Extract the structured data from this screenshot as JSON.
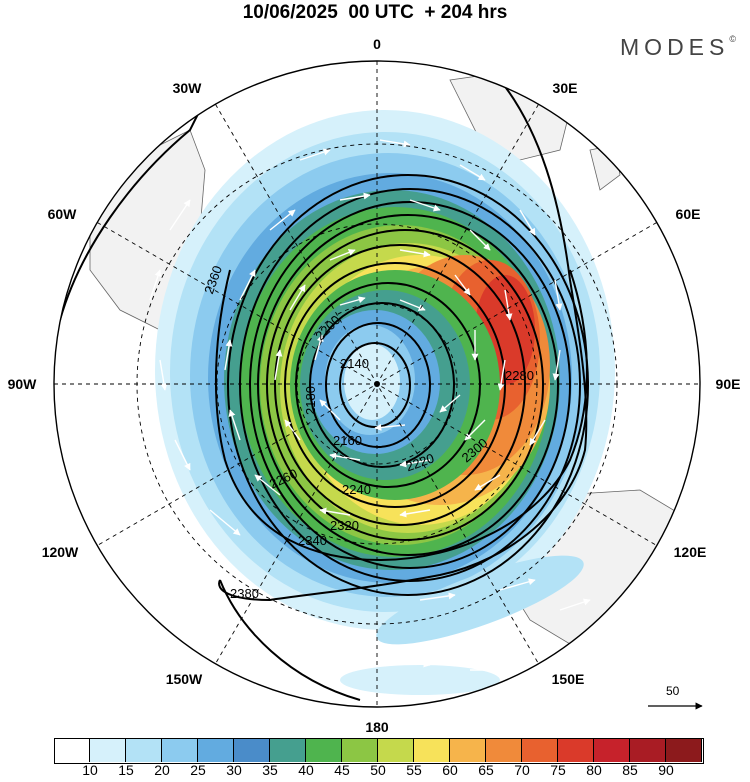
{
  "header": {
    "title": "10/06/2025  00 UTC  + 204 hrs",
    "brand": "MODES",
    "brand_mark": "©"
  },
  "map": {
    "projection": "polar-stereographic-south",
    "longitude_labels": [
      "0",
      "30E",
      "60E",
      "90E",
      "120E",
      "150E",
      "180",
      "150W",
      "120W",
      "90W",
      "60W",
      "30W"
    ],
    "geopotential_contours": [
      "2140",
      "2160",
      "2180",
      "2200",
      "2220",
      "2240",
      "2260",
      "2280",
      "2300",
      "2320",
      "2340",
      "2360",
      "2380"
    ],
    "reference_vector": {
      "label": "50",
      "value": 50
    },
    "colors": {
      "land": "#f2f2f2",
      "coast": "#666666",
      "contour": "#000000",
      "wind_arrow": "#ffffff"
    }
  },
  "colorbar": {
    "ticks": [
      "10",
      "15",
      "20",
      "25",
      "30",
      "35",
      "40",
      "45",
      "50",
      "55",
      "60",
      "65",
      "70",
      "75",
      "80",
      "85",
      "90"
    ],
    "colors": [
      "#ffffff",
      "#d6f1fb",
      "#b3e2f6",
      "#8ccbef",
      "#62abe0",
      "#4a8cc9",
      "#459f8f",
      "#4fb44e",
      "#8cc644",
      "#c5d94c",
      "#f7e25a",
      "#f6b44b",
      "#f08a3a",
      "#e8612f",
      "#da3a2a",
      "#c6222b",
      "#a91c24",
      "#8c1a1c"
    ]
  }
}
